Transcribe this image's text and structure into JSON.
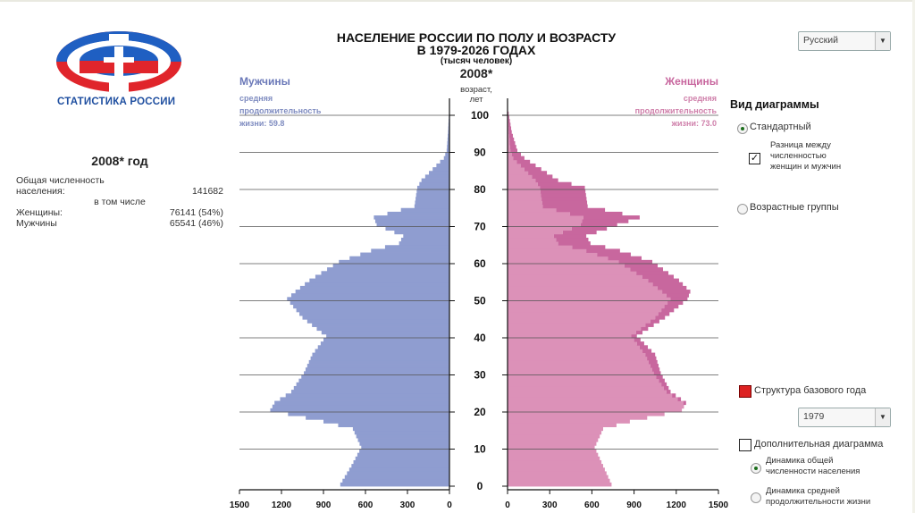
{
  "header": {
    "title_line1": "НАСЕЛЕНИЕ РОССИИ ПО ПОЛУ И ВОЗРАСТУ",
    "title_line2": "В 1979-2026 ГОДАХ",
    "title_line3": "(тысяч человек)",
    "year": "2008*",
    "age_caption_line1": "возраст,",
    "age_caption_line2": "лет"
  },
  "logo": {
    "text": "СТАТИСТИКА РОССИИ"
  },
  "language": {
    "selected": "Русский"
  },
  "men": {
    "title": "Мужчины",
    "life_line1": "средняя",
    "life_line2": "продолжительность",
    "life_line3": "жизни: 59.8"
  },
  "women": {
    "title": "Женщины",
    "life_line1": "средняя",
    "life_line2": "продолжительность",
    "life_line3": "жизни: 73.0"
  },
  "stats": {
    "year_label": "2008* год",
    "total_label_1": "Общая численность",
    "total_label_2": "населения:",
    "total_value": "141682",
    "including": "в том числе",
    "women_label": "Женщины:",
    "women_value": "76141 (54%)",
    "men_label": "Мужчины",
    "men_value": "65541 (46%)"
  },
  "controls": {
    "view_title": "Вид диаграммы",
    "standard": "Стандартный",
    "difference_line1": "Разница между",
    "difference_line2": "численностью",
    "difference_line3": "женщин и мужчин",
    "age_groups": "Возрастные группы",
    "base_structure": "Структура базового года",
    "base_year": "1979",
    "extra_chart": "Дополнительная диаграмма",
    "dyn_pop_line1": "Динамика общей",
    "dyn_pop_line2": "численности населения",
    "dyn_life_line1": "Динамика средней",
    "dyn_life_line2": "продолжительности жизни"
  },
  "colors": {
    "men": "#8f9dd0",
    "women": "#dc91b8",
    "women_excess": "#c8679e",
    "logo_blue": "#1f5fc2",
    "logo_red": "#e0252b"
  },
  "chart_data": {
    "type": "bar",
    "orientation": "horizontal-pyramid",
    "age_ticks": [
      0,
      10,
      20,
      30,
      40,
      50,
      60,
      70,
      80,
      90,
      100
    ],
    "men_axis_ticks": [
      "1500",
      "1200",
      "900",
      "600",
      "300",
      "0"
    ],
    "women_axis_ticks": [
      "0",
      "300",
      "600",
      "900",
      "1200",
      "1500"
    ],
    "xlim": [
      0,
      1500
    ],
    "ylim": [
      0,
      100
    ],
    "ages": [
      0,
      5,
      10,
      15,
      17,
      20,
      22,
      25,
      30,
      35,
      40,
      45,
      50,
      52,
      55,
      60,
      63,
      65,
      67,
      70,
      72,
      75,
      80,
      82,
      85,
      88,
      90,
      95,
      100
    ],
    "men": [
      780,
      700,
      630,
      690,
      900,
      1280,
      1250,
      1130,
      1040,
      980,
      880,
      1050,
      1160,
      1100,
      1000,
      790,
      560,
      360,
      330,
      520,
      540,
      250,
      230,
      200,
      120,
      40,
      20,
      10,
      3
    ],
    "women": [
      740,
      680,
      620,
      680,
      870,
      1240,
      1270,
      1160,
      1090,
      1050,
      920,
      1120,
      1280,
      1300,
      1220,
      1030,
      800,
      590,
      560,
      780,
      940,
      570,
      550,
      360,
      240,
      120,
      70,
      30,
      8
    ]
  }
}
